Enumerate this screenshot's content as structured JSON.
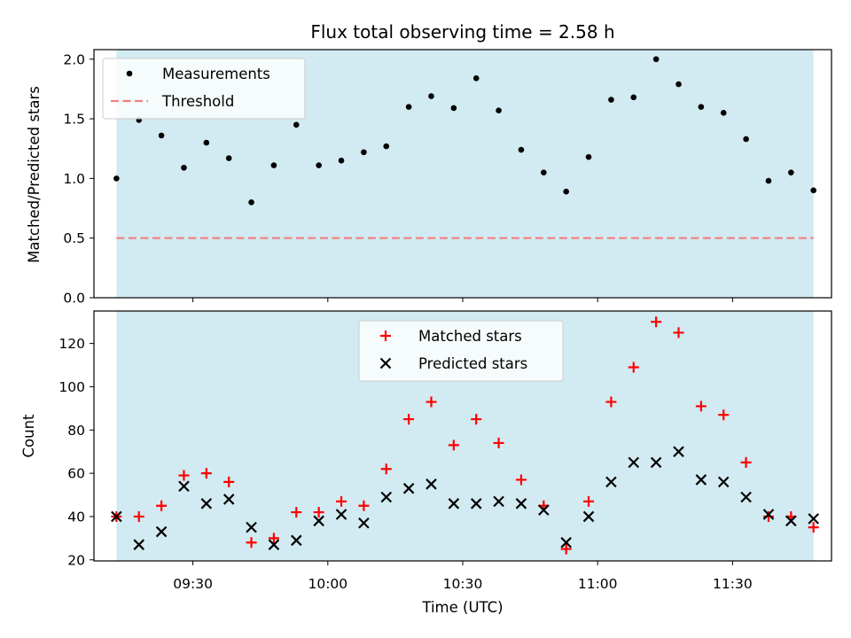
{
  "chart_data": {
    "title": "Flux total observing time = 2.58 h",
    "xlabel": "Time (UTC)",
    "x": [
      "09:13",
      "09:18",
      "09:23",
      "09:28",
      "09:33",
      "09:38",
      "09:43",
      "09:48",
      "09:53",
      "09:58",
      "10:03",
      "10:08",
      "10:13",
      "10:18",
      "10:23",
      "10:28",
      "10:33",
      "10:38",
      "10:43",
      "10:48",
      "10:53",
      "10:58",
      "11:03",
      "11:08",
      "11:13",
      "11:18",
      "11:23",
      "11:28",
      "11:33",
      "11:38",
      "11:43",
      "11:48"
    ],
    "xlim": [
      "09:08",
      "11:52"
    ],
    "xticks": [
      "09:30",
      "10:00",
      "10:30",
      "11:00",
      "11:30"
    ],
    "shaded_span": [
      "09:13",
      "11:48"
    ],
    "colors": {
      "shade": "#add8e6",
      "threshold": "#f08080",
      "matched": "#ff0000",
      "predicted": "#000000",
      "points": "#000000"
    },
    "panels": [
      {
        "type": "scatter",
        "ylabel": "Matched/Predicted stars",
        "ylim": [
          0,
          2.08
        ],
        "yticks": [
          "0.0",
          "0.5",
          "1.0",
          "1.5",
          "2.0"
        ],
        "legend": "top-left",
        "series": [
          {
            "name": "Measurements",
            "marker": "dot",
            "values": [
              1.0,
              1.49,
              1.36,
              1.09,
              1.3,
              1.17,
              0.8,
              1.11,
              1.45,
              1.11,
              1.15,
              1.22,
              1.27,
              1.6,
              1.69,
              1.59,
              1.84,
              1.57,
              1.24,
              1.05,
              0.89,
              1.18,
              1.66,
              1.68,
              2.0,
              1.79,
              1.6,
              1.55,
              1.33,
              0.98,
              1.05,
              0.9
            ]
          },
          {
            "name": "Threshold",
            "marker": "dashed-line",
            "values": [
              0.5
            ]
          }
        ]
      },
      {
        "type": "scatter",
        "ylabel": "Count",
        "ylim": [
          19.5,
          135
        ],
        "yticks": [
          "20",
          "40",
          "60",
          "80",
          "100",
          "120"
        ],
        "legend": "top-center",
        "series": [
          {
            "name": "Matched stars",
            "marker": "plus",
            "values": [
              40,
              40,
              45,
              59,
              60,
              56,
              28,
              30,
              42,
              42,
              47,
              45,
              62,
              85,
              93,
              73,
              85,
              74,
              57,
              45,
              25,
              47,
              93,
              109,
              130,
              125,
              91,
              87,
              65,
              40,
              40,
              35
            ]
          },
          {
            "name": "Predicted stars",
            "marker": "x",
            "values": [
              40,
              27,
              33,
              54,
              46,
              48,
              35,
              27,
              29,
              38,
              41,
              37,
              49,
              53,
              55,
              46,
              46,
              47,
              46,
              43,
              28,
              40,
              56,
              65,
              65,
              70,
              57,
              56,
              49,
              41,
              38,
              39
            ]
          }
        ]
      }
    ]
  }
}
